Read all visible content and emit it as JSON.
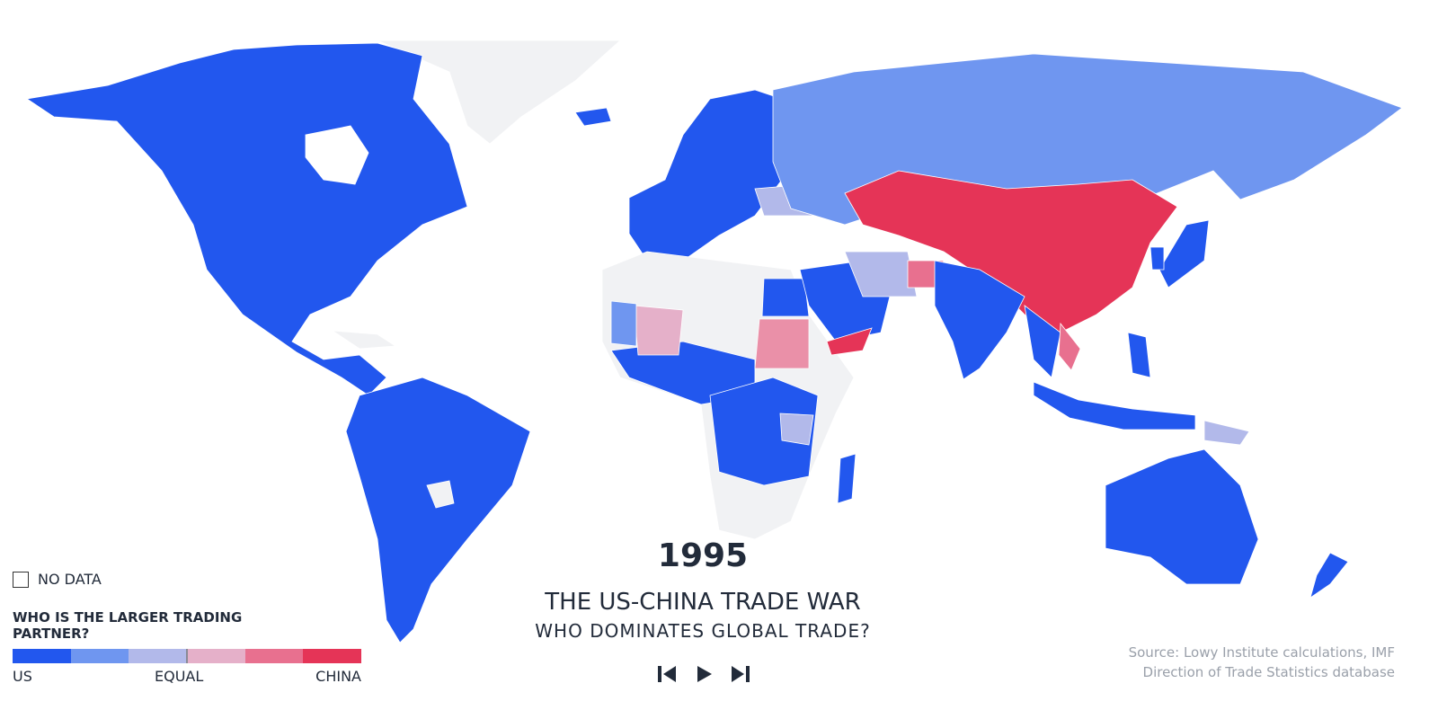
{
  "year": "1995",
  "title": "THE US-CHINA TRADE WAR",
  "subtitle": "WHO DOMINATES GLOBAL TRADE?",
  "legend": {
    "no_data": "NO DATA",
    "heading": "WHO IS THE LARGER TRADING PARTNER?",
    "scale_colors": [
      "#2257ee",
      "#6f96f0",
      "#b2b9ea",
      "#e5b0c9",
      "#e8708f",
      "#e53457"
    ],
    "labels": [
      "US",
      "EQUAL",
      "CHINA"
    ]
  },
  "source": [
    "Source: Lowy Institute calculations, IMF",
    "Direction of Trade Statistics database"
  ]
}
